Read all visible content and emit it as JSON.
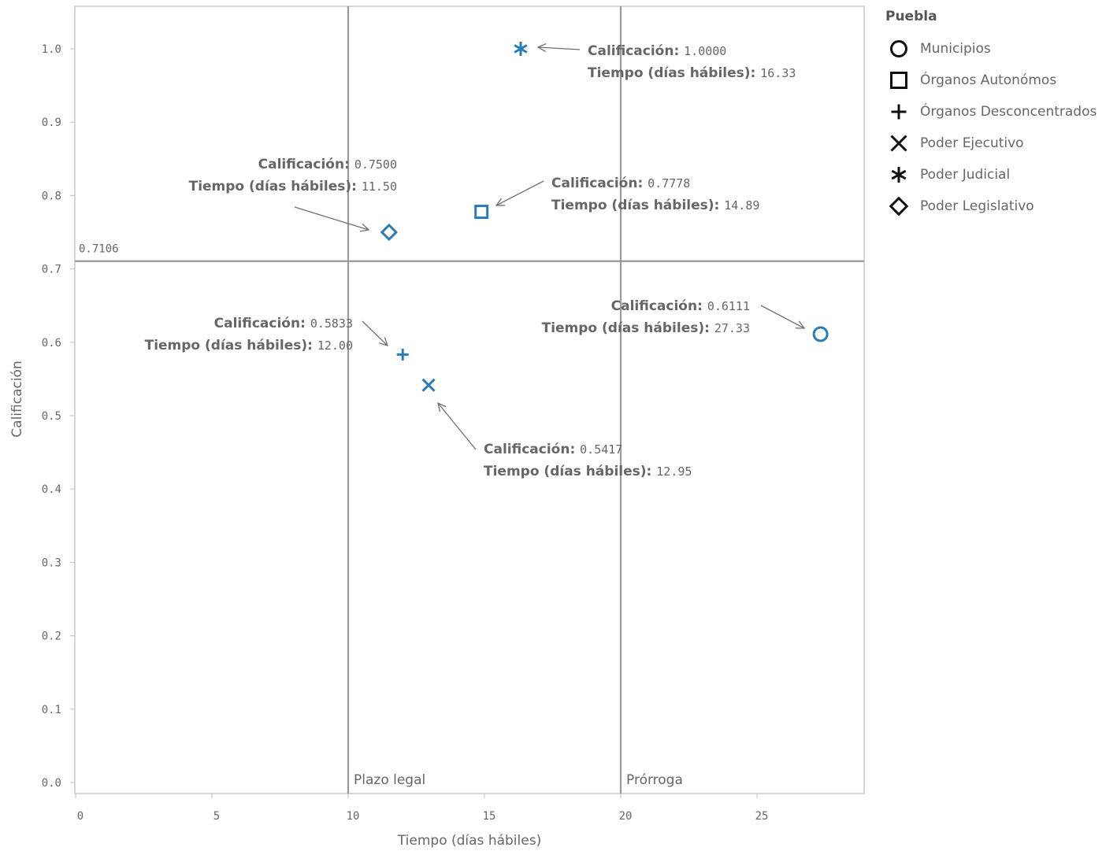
{
  "chart_data": {
    "type": "scatter",
    "xlabel": "Tiempo (días hábiles)",
    "ylabel": "Calificación",
    "xlim": [
      0,
      29
    ],
    "ylim": [
      0,
      1.058
    ],
    "x_ticks": [
      "0",
      "5",
      "10",
      "15",
      "20",
      "25"
    ],
    "x_tick_values": [
      0,
      5,
      10,
      15,
      20,
      25
    ],
    "y_ticks": [
      "0.0",
      "0.1",
      "0.2",
      "0.3",
      "0.4",
      "0.5",
      "0.6",
      "0.7",
      "0.8",
      "0.9",
      "1.0"
    ],
    "y_tick_values": [
      0,
      0.1,
      0.2,
      0.3,
      0.4,
      0.5,
      0.6,
      0.7,
      0.8,
      0.9,
      1.0
    ],
    "grid": false,
    "reference_lines": {
      "horizontal": {
        "value": 0.7106,
        "label": "0.7106"
      },
      "vertical": [
        {
          "value": 10,
          "label": "Plazo legal"
        },
        {
          "value": 20,
          "label": "Prórroga"
        }
      ]
    },
    "legend": {
      "title": "Puebla",
      "position": "right",
      "items": [
        {
          "name": "Municipios",
          "marker": "circle"
        },
        {
          "name": "Órganos Autonómos",
          "marker": "square"
        },
        {
          "name": "Órganos Desconcentrados",
          "marker": "plus"
        },
        {
          "name": "Poder Ejecutivo",
          "marker": "x"
        },
        {
          "name": "Poder Judicial",
          "marker": "asterisk"
        },
        {
          "name": "Poder Legislativo",
          "marker": "diamond"
        }
      ]
    },
    "series": [
      {
        "name": "Municipios",
        "marker": "circle",
        "x": 27.33,
        "y": 0.6111,
        "label_key1": "Calificación:",
        "label_val1": "0.6111",
        "label_key2": "Tiempo (días hábiles):",
        "label_val2": "27.33"
      },
      {
        "name": "Órganos Autonómos",
        "marker": "square",
        "x": 14.89,
        "y": 0.7778,
        "label_key1": "Calificación:",
        "label_val1": "0.7778",
        "label_key2": "Tiempo (días hábiles):",
        "label_val2": "14.89"
      },
      {
        "name": "Órganos Desconcentrados",
        "marker": "plus",
        "x": 12.0,
        "y": 0.5833,
        "label_key1": "Calificación:",
        "label_val1": "0.5833",
        "label_key2": "Tiempo (días hábiles):",
        "label_val2": "12.00"
      },
      {
        "name": "Poder Ejecutivo",
        "marker": "x",
        "x": 12.95,
        "y": 0.5417,
        "label_key1": "Calificación:",
        "label_val1": "0.5417",
        "label_key2": "Tiempo (días hábiles):",
        "label_val2": "12.95"
      },
      {
        "name": "Poder Judicial",
        "marker": "asterisk",
        "x": 16.33,
        "y": 1.0,
        "label_key1": "Calificación:",
        "label_val1": "1.0000",
        "label_key2": "Tiempo (días hábiles):",
        "label_val2": "16.33"
      },
      {
        "name": "Poder Legislativo",
        "marker": "diamond",
        "x": 11.5,
        "y": 0.75,
        "label_key1": "Calificación:",
        "label_val1": "0.7500",
        "label_key2": "Tiempo (días hábiles):",
        "label_val2": "11.50"
      }
    ]
  },
  "colors": {
    "marker": "#2b7bb9",
    "reference_line": "#9a9a9a",
    "frame": "#c8c8c8",
    "text": "#666666",
    "arrow": "#707070",
    "legend_marker": "#111111"
  }
}
